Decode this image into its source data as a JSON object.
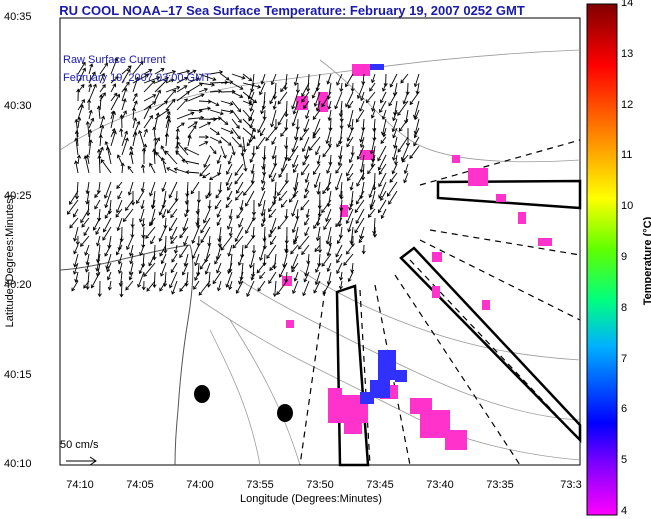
{
  "title": "RU COOL  NOAA–17  Sea Surface Temperature:  February 19, 2007 0252 GMT",
  "legend": {
    "line1": "Raw Surface Current",
    "line2": "February 19, 2007 03:00 GMT",
    "scale_label": "50 cm/s"
  },
  "axes": {
    "ylabel": "Latitude (Degrees:Minutes)",
    "xlabel": "Longitude (Degrees:Minutes)",
    "yticks": [
      "40:35",
      "40:30",
      "40:25",
      "40:20",
      "40:15",
      "40:10"
    ],
    "xticks": [
      "74:10",
      "74:05",
      "74:00",
      "73:55",
      "73:50",
      "73:45",
      "73:40",
      "73:35",
      "73:3"
    ]
  },
  "colorbar": {
    "title": "Temperature (°C)",
    "ticks": [
      "14",
      "13",
      "12",
      "11",
      "10",
      "9",
      "8",
      "7",
      "6",
      "5",
      "4"
    ],
    "range": [
      4,
      14
    ],
    "colors": [
      "#ff00ff",
      "#0000ff",
      "#00ffff",
      "#00ff00",
      "#ffff00",
      "#ff0000",
      "#800000"
    ]
  },
  "colors": {
    "sst_patch": "#ff33cc",
    "sst_cold": "#3030ff",
    "title": "#1a1aa8"
  }
}
